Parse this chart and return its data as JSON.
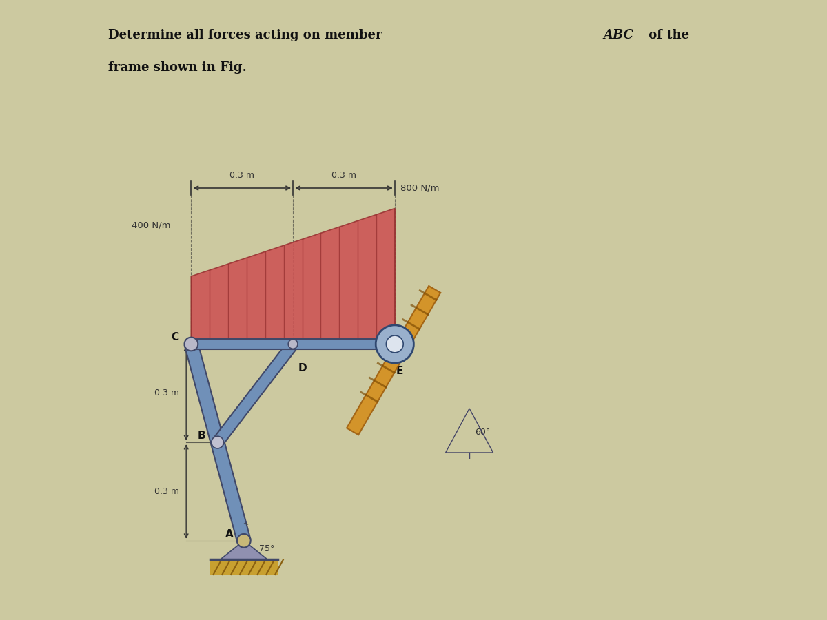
{
  "bg_color": "#ccc9a0",
  "beam_color": "#7090b8",
  "beam_edge": "#404868",
  "load_fill": "#cc5555",
  "load_edge": "#993333",
  "ground_fill": "#c8a030",
  "ground_edge": "#8a6010",
  "incline_fill": "#d49020",
  "incline_edge": "#a06010",
  "dim_color": "#333333",
  "label_color": "#111111",
  "roller_face": "#99b0cc",
  "roller_edge": "#304870",
  "title1": "Determine all forces acting on member ",
  "title_abc": "ABC",
  "title1_end": " of the",
  "title2": "frame shown in Fig.",
  "dim_03_left": "0.3 m",
  "dim_03_right": "0.3 m",
  "load_400": "400 N/m",
  "load_800": "800 N/m",
  "dim_03_upper": "0.3 m",
  "dim_03_lower": "0.3 m",
  "angle_60": "60°",
  "angle_75": "75°",
  "label_A": "A",
  "label_B": "B",
  "label_C": "C",
  "label_D": "D",
  "label_E": "E"
}
